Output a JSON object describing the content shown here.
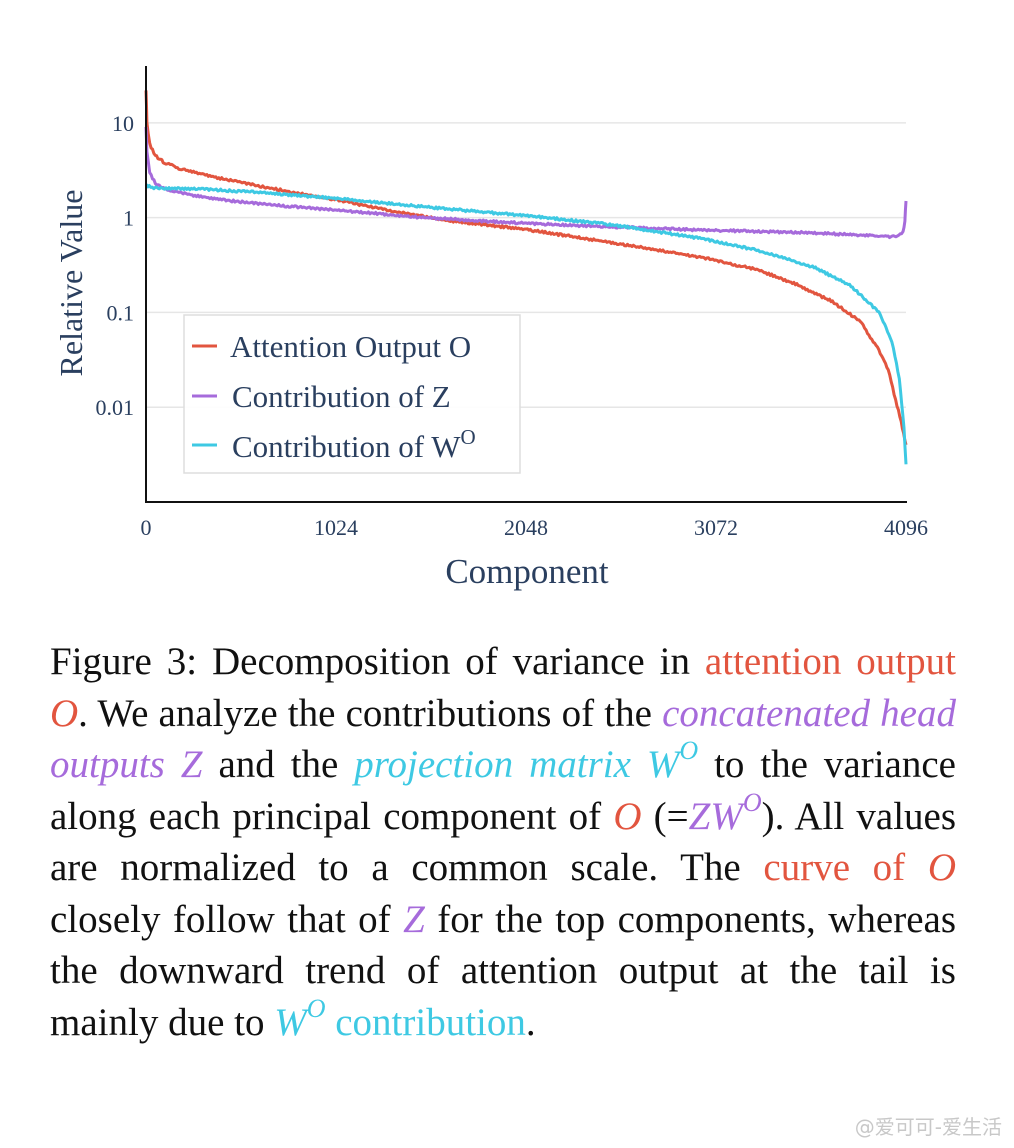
{
  "chart_data": {
    "type": "line",
    "title": "",
    "xlabel": "Component",
    "ylabel": "Relative Value",
    "xlim": [
      0,
      4096
    ],
    "ylim_log10": [
      -3.0,
      1.6
    ],
    "y_scale": "log",
    "x_ticks": [
      0,
      1024,
      2048,
      3072,
      4096
    ],
    "y_ticks": [
      {
        "value": 0.01,
        "label": "0.01"
      },
      {
        "value": 0.1,
        "label": "0.1"
      },
      {
        "value": 1,
        "label": "1"
      },
      {
        "value": 10,
        "label": "10"
      }
    ],
    "grid": true,
    "legend_position": "bottom-left",
    "series": [
      {
        "name": "Attention Output O",
        "color": "#e2553f",
        "x": [
          0,
          5,
          20,
          50,
          100,
          200,
          400,
          700,
          1024,
          1300,
          1600,
          2048,
          2500,
          3000,
          3300,
          3500,
          3700,
          3850,
          3950,
          4000,
          4040,
          4070,
          4096
        ],
        "y": [
          22,
          10,
          6,
          4.5,
          3.8,
          3.2,
          2.6,
          2.0,
          1.55,
          1.2,
          0.95,
          0.75,
          0.55,
          0.38,
          0.28,
          0.2,
          0.13,
          0.08,
          0.04,
          0.025,
          0.012,
          0.007,
          0.004
        ]
      },
      {
        "name": "Contribution of Z",
        "color": "#a66bdb",
        "x": [
          0,
          5,
          20,
          50,
          100,
          200,
          400,
          700,
          1024,
          1500,
          2048,
          2500,
          3000,
          3500,
          3900,
          4000,
          4050,
          4080,
          4090,
          4096
        ],
        "y": [
          9,
          5,
          3,
          2.3,
          2.0,
          1.8,
          1.55,
          1.35,
          1.2,
          1.0,
          0.87,
          0.8,
          0.74,
          0.7,
          0.65,
          0.63,
          0.64,
          0.7,
          0.9,
          1.5
        ]
      },
      {
        "name": "Contribution of W",
        "name_sup": "O",
        "color": "#3ec9e3",
        "x": [
          0,
          10,
          50,
          100,
          300,
          600,
          1024,
          1500,
          2048,
          2500,
          3000,
          3300,
          3600,
          3800,
          3950,
          4020,
          4060,
          4085,
          4096
        ],
        "y": [
          2.2,
          2.15,
          2.05,
          2.05,
          2.0,
          1.85,
          1.6,
          1.3,
          1.05,
          0.85,
          0.6,
          0.45,
          0.3,
          0.19,
          0.1,
          0.05,
          0.02,
          0.006,
          0.0025
        ]
      }
    ]
  },
  "caption": {
    "p1": "Figure 3: Decomposition of variance in ",
    "o_term": "attention output ",
    "o_sym": "O",
    "p2": ".  We analyze the contributions of the ",
    "z_term": "concatenated head outputs ",
    "z_sym": "Z",
    "p3": " and the ",
    "w_term": "projection matrix ",
    "w_sym": "W",
    "w_sup": "O",
    "p4": " to the variance along each principal component of ",
    "o_sym2": "O",
    "p5": " (=",
    "z_sym2": "Z",
    "w_sym2": "W",
    "w_sup2": "O",
    "p6": ").  All values are normalized to a common scale. The ",
    "curve_term": "curve of ",
    "o_sym3": "O",
    "p7": " closely follow that of ",
    "z_sym3": "Z",
    "p8": " for the top components, whereas the downward trend of attention output at the tail is mainly due to ",
    "w_sym3": "W",
    "w_sup3": "O",
    "w_contrib": " contribution",
    "p9": "."
  },
  "watermark": "@爱可可-爱生活"
}
